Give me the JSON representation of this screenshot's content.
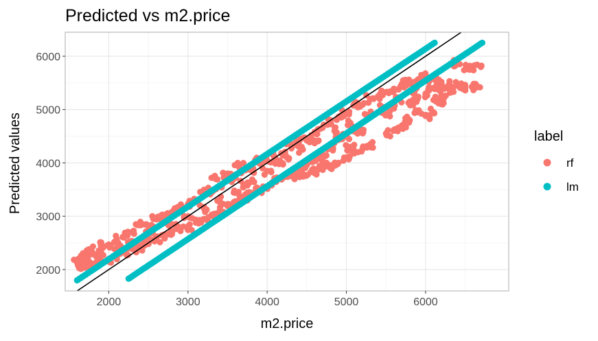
{
  "chart_data": {
    "type": "scatter",
    "title": "Predicted vs m2.price",
    "xlabel": "m2.price",
    "ylabel": "Predicted values",
    "xlim": [
      1450,
      7050
    ],
    "ylim": [
      1600,
      6450
    ],
    "xticks": [
      2000,
      3000,
      4000,
      5000,
      6000
    ],
    "yticks": [
      2000,
      3000,
      4000,
      5000,
      6000
    ],
    "grid": true,
    "legend": {
      "title": "label",
      "position": "right",
      "entries": [
        {
          "name": "rf",
          "color": "#F8766D"
        },
        {
          "name": "lm",
          "color": "#00BFC4"
        }
      ]
    },
    "reference_line": {
      "type": "identity",
      "points": [
        [
          1600,
          1600
        ],
        [
          6450,
          6450
        ]
      ],
      "color": "#000000"
    },
    "series": [
      {
        "name": "rf",
        "color": "#F8766D",
        "description": "Dense band of random forest predictions; follows identity line at low prices and flattens at high prices",
        "points": [
          [
            1600,
            2130
          ],
          [
            1650,
            2260
          ],
          [
            1700,
            2230
          ],
          [
            1750,
            2380
          ],
          [
            1800,
            2300
          ],
          [
            1900,
            2460
          ],
          [
            2000,
            2470
          ],
          [
            2100,
            2570
          ],
          [
            2200,
            2640
          ],
          [
            2300,
            2700
          ],
          [
            2400,
            2830
          ],
          [
            2500,
            2810
          ],
          [
            2600,
            2940
          ],
          [
            2700,
            2980
          ],
          [
            2800,
            3080
          ],
          [
            2900,
            3170
          ],
          [
            3000,
            3230
          ],
          [
            3100,
            3300
          ],
          [
            3200,
            3450
          ],
          [
            3300,
            3480
          ],
          [
            3400,
            3560
          ],
          [
            3500,
            3670
          ],
          [
            3600,
            3720
          ],
          [
            3700,
            3860
          ],
          [
            3800,
            3880
          ],
          [
            3900,
            4010
          ],
          [
            4000,
            4040
          ],
          [
            4100,
            4110
          ],
          [
            4200,
            4140
          ],
          [
            4300,
            4330
          ],
          [
            4400,
            4390
          ],
          [
            4500,
            4420
          ],
          [
            4600,
            4580
          ],
          [
            4700,
            4660
          ],
          [
            4800,
            4780
          ],
          [
            4900,
            4860
          ],
          [
            5000,
            4920
          ],
          [
            5100,
            5080
          ],
          [
            5200,
            5090
          ],
          [
            5300,
            5200
          ],
          [
            5400,
            5250
          ],
          [
            5500,
            5330
          ],
          [
            5600,
            5390
          ],
          [
            5700,
            5480
          ],
          [
            5800,
            5510
          ],
          [
            5900,
            5560
          ],
          [
            6000,
            5620
          ],
          [
            6100,
            5570
          ],
          [
            6200,
            5520
          ],
          [
            6300,
            5470
          ],
          [
            6400,
            5450
          ],
          [
            6500,
            5440
          ],
          [
            6600,
            5430
          ],
          [
            6650,
            5420
          ],
          [
            6500,
            5750
          ],
          [
            6550,
            5790
          ],
          [
            6400,
            5880
          ],
          [
            6650,
            5840
          ],
          [
            6100,
            5180
          ],
          [
            6200,
            5260
          ],
          [
            6300,
            5380
          ],
          [
            5900,
            5200
          ],
          [
            5800,
            5150
          ],
          [
            5600,
            5020
          ],
          [
            5500,
            4900
          ],
          [
            5200,
            4620
          ],
          [
            5100,
            4590
          ],
          [
            5000,
            4500
          ],
          [
            4900,
            4430
          ],
          [
            4800,
            4300
          ],
          [
            4700,
            4160
          ],
          [
            4600,
            4050
          ],
          [
            4500,
            3960
          ],
          [
            4400,
            3860
          ],
          [
            4300,
            3790
          ],
          [
            4200,
            3720
          ],
          [
            4100,
            3660
          ],
          [
            4000,
            3560
          ],
          [
            3900,
            3500
          ],
          [
            3800,
            3440
          ],
          [
            3700,
            3360
          ],
          [
            3600,
            3280
          ],
          [
            3500,
            3190
          ],
          [
            3400,
            3100
          ],
          [
            3300,
            3030
          ],
          [
            3200,
            2950
          ],
          [
            3100,
            2880
          ],
          [
            3000,
            2810
          ],
          [
            2900,
            2760
          ],
          [
            2800,
            2700
          ],
          [
            2700,
            2630
          ],
          [
            2600,
            2560
          ],
          [
            2500,
            2480
          ],
          [
            2400,
            2420
          ],
          [
            2300,
            2380
          ],
          [
            2200,
            2320
          ],
          [
            2100,
            2260
          ],
          [
            2000,
            2200
          ],
          [
            1900,
            2150
          ],
          [
            1800,
            2110
          ],
          [
            1700,
            2080
          ],
          [
            1620,
            2060
          ],
          [
            4350,
            3760
          ],
          [
            4400,
            3760
          ],
          [
            4450,
            3800
          ],
          [
            4550,
            3830
          ],
          [
            4600,
            3850
          ],
          [
            4650,
            3900
          ],
          [
            4800,
            3900
          ],
          [
            4900,
            4000
          ],
          [
            5000,
            4100
          ],
          [
            5100,
            4180
          ],
          [
            5200,
            4250
          ],
          [
            5300,
            4350
          ],
          [
            5500,
            4550
          ],
          [
            5600,
            4620
          ],
          [
            5800,
            4800
          ],
          [
            6000,
            4880
          ],
          [
            6100,
            4950
          ],
          [
            6200,
            5100
          ],
          [
            3350,
            3700
          ],
          [
            3500,
            3800
          ],
          [
            3650,
            3950
          ],
          [
            3850,
            4060
          ],
          [
            3700,
            3600
          ],
          [
            3600,
            3440
          ],
          [
            3800,
            3650
          ],
          [
            4000,
            3850
          ],
          [
            4150,
            3980
          ],
          [
            4250,
            4100
          ],
          [
            4450,
            4250
          ],
          [
            4650,
            4420
          ],
          [
            4850,
            4600
          ],
          [
            5050,
            4750
          ],
          [
            5250,
            4900
          ],
          [
            5450,
            5050
          ],
          [
            5650,
            5200
          ],
          [
            5850,
            5350
          ],
          [
            6050,
            5400
          ],
          [
            6250,
            5400
          ],
          [
            6450,
            5420
          ],
          [
            3000,
            3000
          ],
          [
            2800,
            2850
          ],
          [
            2500,
            2650
          ],
          [
            2300,
            2500
          ],
          [
            2100,
            2400
          ],
          [
            1900,
            2300
          ],
          [
            1700,
            2180
          ],
          [
            3200,
            3150
          ],
          [
            3400,
            3300
          ],
          [
            5700,
            4700
          ],
          [
            5900,
            4950
          ],
          [
            6000,
            5300
          ],
          [
            6150,
            5380
          ],
          [
            4750,
            4000
          ],
          [
            5050,
            4300
          ]
        ]
      },
      {
        "name": "lm",
        "color": "#00BFC4",
        "description": "Two parallel linear bands of linear model predictions",
        "bands": [
          {
            "from": [
              1600,
              1800
            ],
            "to": [
              6100,
              6240
            ]
          },
          {
            "from": [
              2250,
              1830
            ],
            "to": [
              6700,
              6240
            ]
          }
        ],
        "band_points_each": 140
      }
    ]
  }
}
